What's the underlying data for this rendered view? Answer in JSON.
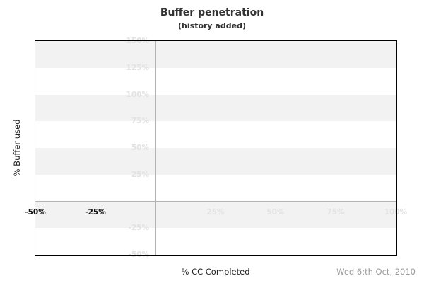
{
  "chart_data": {
    "type": "line",
    "title": "Buffer penetration",
    "subtitle": "(history added)",
    "xlabel": "% CC Completed",
    "ylabel": "% Buffer used",
    "footer_date": "Wed 6:th Oct, 2010",
    "xlim": [
      -50,
      100
    ],
    "ylim": [
      -50,
      150
    ],
    "x_ticks": [
      {
        "value": -50,
        "label": "-50%",
        "emphasis": "dark"
      },
      {
        "value": -25,
        "label": "-25%",
        "emphasis": "dark"
      },
      {
        "value": 25,
        "label": "25%",
        "emphasis": "light"
      },
      {
        "value": 50,
        "label": "50%",
        "emphasis": "light"
      },
      {
        "value": 75,
        "label": "75%",
        "emphasis": "light"
      },
      {
        "value": 100,
        "label": "100%",
        "emphasis": "light"
      }
    ],
    "y_ticks": [
      {
        "value": 150,
        "label": "150%"
      },
      {
        "value": 125,
        "label": "125%"
      },
      {
        "value": 100,
        "label": "100%"
      },
      {
        "value": 75,
        "label": "75%"
      },
      {
        "value": 50,
        "label": "50%"
      },
      {
        "value": 25,
        "label": "25%"
      },
      {
        "value": -25,
        "label": "-25%"
      },
      {
        "value": -50,
        "label": "-50%"
      }
    ],
    "gray_bands": [
      [
        125,
        150
      ],
      [
        75,
        100
      ],
      [
        25,
        50
      ],
      [
        -25,
        0
      ]
    ],
    "zero_lines": {
      "x_at": 0,
      "y_at": 0
    },
    "series": [],
    "legend": "none",
    "colors": {
      "background": "#ffffff",
      "band": "#f2f2f2",
      "zero_line": "#b3b3b3",
      "tick_light": "#e2e2e2",
      "tick_dark": "#111111",
      "title": "#333333",
      "axis_title": "#222222",
      "date": "#999999",
      "border": "#000000"
    }
  }
}
